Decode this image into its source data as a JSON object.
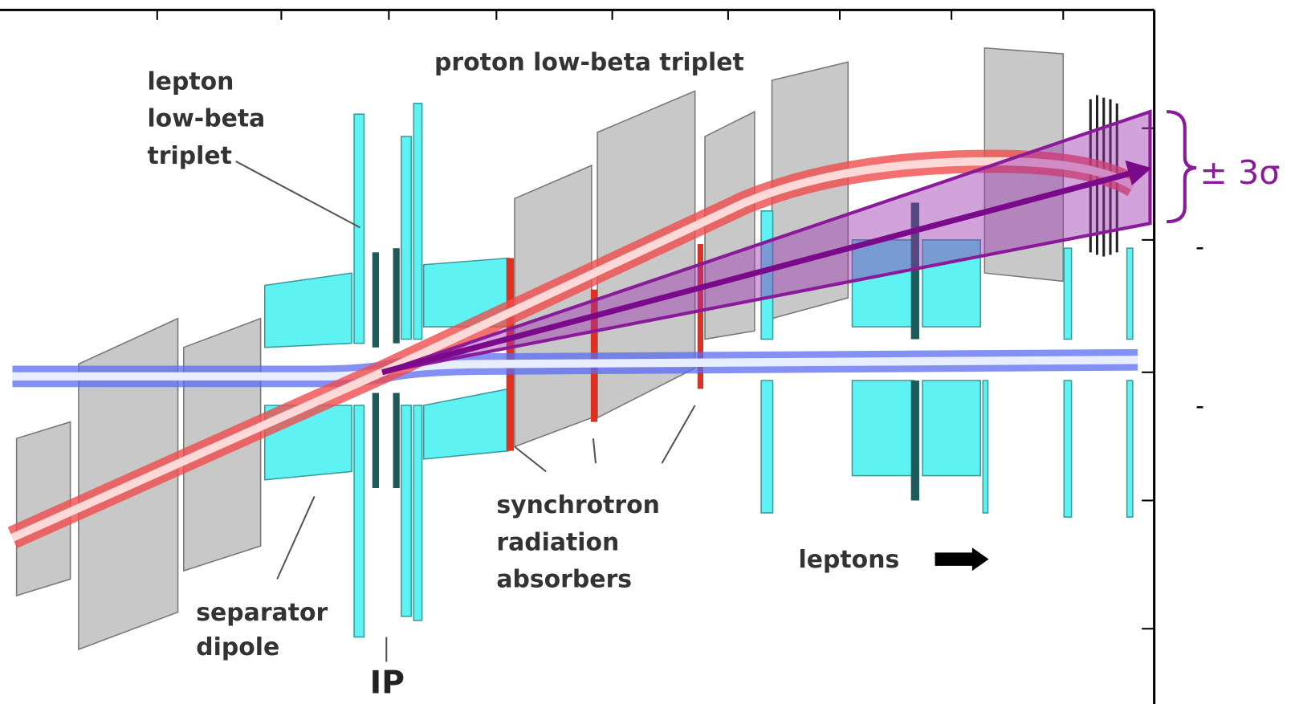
{
  "labels": {
    "lepton_triplet": [
      "lepton",
      "low-beta",
      "triplet"
    ],
    "proton_triplet": "proton low-beta triplet",
    "absorbers": [
      "synchrotron",
      "radiation",
      "absorbers"
    ],
    "separator": [
      "separator",
      "dipole"
    ],
    "ip": "IP",
    "leptons": "leptons",
    "sigma": "± 3σ",
    "dashes": [
      "-",
      "-"
    ]
  }
}
